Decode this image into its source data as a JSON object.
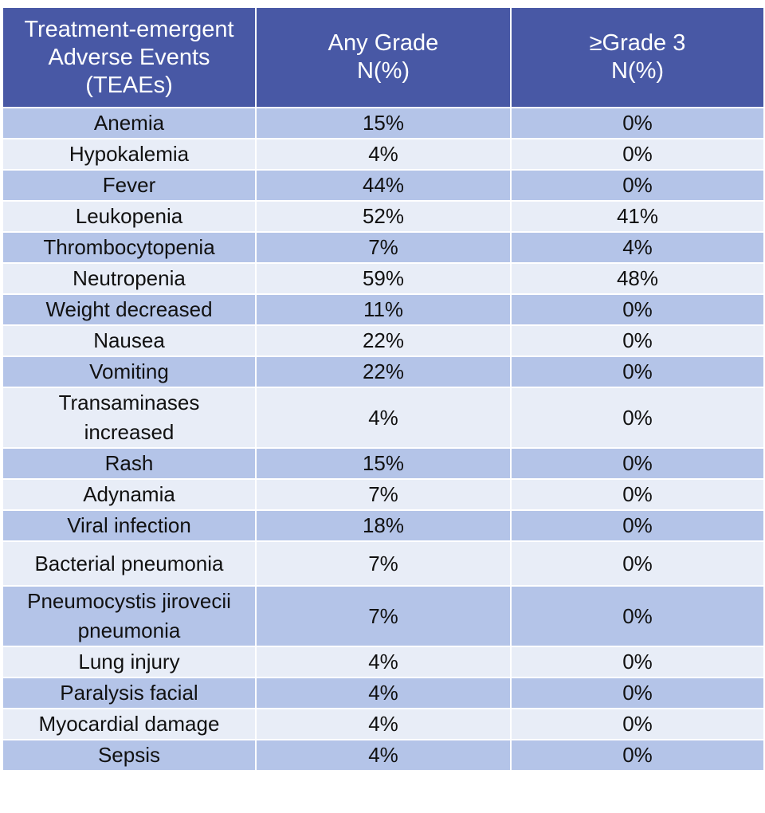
{
  "table": {
    "header": [
      [
        "Treatment-emergent",
        "Adverse Events",
        "(TEAEs)"
      ],
      [
        "Any Grade",
        "N(%)"
      ],
      [
        "≥Grade 3",
        "N(%)"
      ]
    ],
    "rows": [
      [
        "Anemia",
        "15%",
        "0%"
      ],
      [
        "Hypokalemia",
        "4%",
        "0%"
      ],
      [
        "Fever",
        "44%",
        "0%"
      ],
      [
        "Leukopenia",
        "52%",
        "41%"
      ],
      [
        "Thrombocytopenia",
        "7%",
        "4%"
      ],
      [
        "Neutropenia",
        "59%",
        "48%"
      ],
      [
        "Weight decreased",
        "11%",
        "0%"
      ],
      [
        "Nausea",
        "22%",
        "0%"
      ],
      [
        "Vomiting",
        "22%",
        "0%"
      ],
      [
        [
          "Transaminases",
          "increased"
        ],
        "4%",
        "0%"
      ],
      [
        "Rash",
        "15%",
        "0%"
      ],
      [
        "Adynamia",
        "7%",
        "0%"
      ],
      [
        "Viral infection",
        "18%",
        "0%"
      ],
      [
        "Bacterial pneumonia",
        "7%",
        "0%"
      ],
      [
        [
          "Pneumocystis jirovecii",
          "pneumonia"
        ],
        "7%",
        "0%"
      ],
      [
        "Lung injury",
        "4%",
        "0%"
      ],
      [
        "Paralysis facial",
        "4%",
        "0%"
      ],
      [
        "Myocardial damage",
        "4%",
        "0%"
      ],
      [
        "Sepsis",
        "4%",
        "0%"
      ]
    ]
  }
}
